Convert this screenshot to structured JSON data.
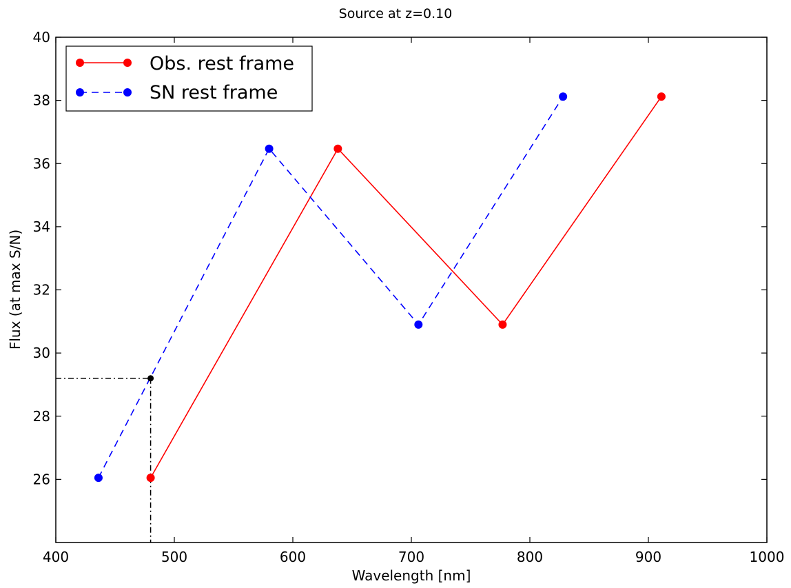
{
  "chart_data": {
    "type": "line",
    "title": "Source at z=0.10",
    "xlabel": "Wavelength [nm]",
    "ylabel": "Flux (at max S/N)",
    "xlim": [
      400,
      1000
    ],
    "ylim": [
      24,
      40
    ],
    "xticks": [
      400,
      500,
      600,
      700,
      800,
      900,
      1000
    ],
    "yticks": [
      26,
      28,
      30,
      32,
      34,
      36,
      38,
      40
    ],
    "grid": false,
    "legend_position": "top-left",
    "series": [
      {
        "name": "Obs. rest frame",
        "color": "#ff0000",
        "line_style": "solid",
        "x": [
          480,
          638,
          777,
          911
        ],
        "y": [
          26.05,
          36.47,
          30.9,
          38.12
        ]
      },
      {
        "name": "SN rest frame",
        "color": "#0000ff",
        "line_style": "dashed",
        "x": [
          436,
          580,
          706,
          828
        ],
        "y": [
          26.05,
          36.47,
          30.9,
          38.12
        ]
      }
    ],
    "annotations": [
      {
        "type": "point",
        "color": "#000000",
        "line_style": "dashdot",
        "x": 480,
        "y": 29.2
      }
    ]
  }
}
